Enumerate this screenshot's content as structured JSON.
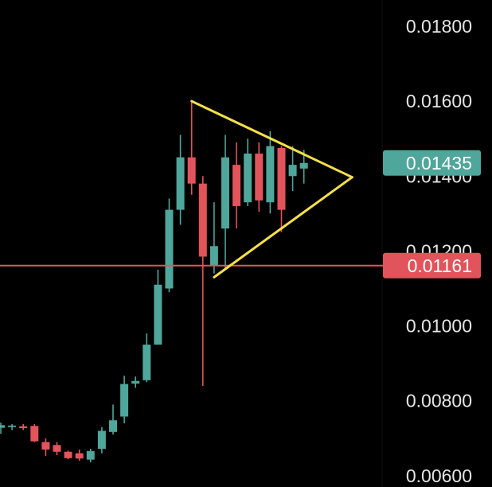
{
  "chart_data": {
    "type": "candlestick",
    "background": "#000000",
    "colors": {
      "up": "#4fa69a",
      "down": "#e2545b",
      "pattern": "#f5e04a",
      "support": "#e2545b"
    },
    "ylim": [
      0.0057,
      0.0187
    ],
    "y_ticks": [
      "0.01800",
      "0.01600",
      "0.01400",
      "0.01200",
      "0.01000",
      "0.00800",
      "0.00600"
    ],
    "current_price": {
      "label": "0.01435",
      "value": 0.01435,
      "color": "#4fa69a"
    },
    "support_level": {
      "label": "0.01161",
      "value": 0.01161,
      "color": "#e2545b"
    },
    "candles": [
      {
        "o": 0.00728,
        "h": 0.00742,
        "l": 0.00712,
        "c": 0.00735
      },
      {
        "o": 0.0073,
        "h": 0.00738,
        "l": 0.00722,
        "c": 0.00734
      },
      {
        "o": 0.00732,
        "h": 0.00738,
        "l": 0.00722,
        "c": 0.00727
      },
      {
        "o": 0.00733,
        "h": 0.00738,
        "l": 0.0069,
        "c": 0.00692
      },
      {
        "o": 0.0069,
        "h": 0.007,
        "l": 0.00653,
        "c": 0.0067
      },
      {
        "o": 0.00682,
        "h": 0.0069,
        "l": 0.00655,
        "c": 0.00664
      },
      {
        "o": 0.00664,
        "h": 0.00667,
        "l": 0.00644,
        "c": 0.00647
      },
      {
        "o": 0.0066,
        "h": 0.0067,
        "l": 0.0064,
        "c": 0.00646
      },
      {
        "o": 0.00643,
        "h": 0.00672,
        "l": 0.00636,
        "c": 0.00666
      },
      {
        "o": 0.00672,
        "h": 0.0073,
        "l": 0.0066,
        "c": 0.0072
      },
      {
        "o": 0.00717,
        "h": 0.0079,
        "l": 0.0071,
        "c": 0.00748
      },
      {
        "o": 0.00758,
        "h": 0.00867,
        "l": 0.0074,
        "c": 0.00845
      },
      {
        "o": 0.00846,
        "h": 0.00865,
        "l": 0.00835,
        "c": 0.00853
      },
      {
        "o": 0.00855,
        "h": 0.0098,
        "l": 0.0085,
        "c": 0.0095
      },
      {
        "o": 0.0095,
        "h": 0.0115,
        "l": 0.0095,
        "c": 0.0111
      },
      {
        "o": 0.011,
        "h": 0.0134,
        "l": 0.0109,
        "c": 0.0131
      },
      {
        "o": 0.0131,
        "h": 0.0151,
        "l": 0.0127,
        "c": 0.0145
      },
      {
        "o": 0.0145,
        "h": 0.016,
        "l": 0.0135,
        "c": 0.0138
      },
      {
        "o": 0.0138,
        "h": 0.014,
        "l": 0.0084,
        "c": 0.01185
      },
      {
        "o": 0.0116,
        "h": 0.0133,
        "l": 0.0114,
        "c": 0.01213
      },
      {
        "o": 0.0126,
        "h": 0.0151,
        "l": 0.0115,
        "c": 0.0145
      },
      {
        "o": 0.0143,
        "h": 0.0149,
        "l": 0.0126,
        "c": 0.0132
      },
      {
        "o": 0.0133,
        "h": 0.015,
        "l": 0.0132,
        "c": 0.0146
      },
      {
        "o": 0.0146,
        "h": 0.0149,
        "l": 0.01305,
        "c": 0.01335
      },
      {
        "o": 0.0133,
        "h": 0.0152,
        "l": 0.013,
        "c": 0.0148
      },
      {
        "o": 0.01475,
        "h": 0.0148,
        "l": 0.0125,
        "c": 0.0131
      },
      {
        "o": 0.014,
        "h": 0.0148,
        "l": 0.0136,
        "c": 0.0143
      },
      {
        "o": 0.0142,
        "h": 0.0147,
        "l": 0.0138,
        "c": 0.01435
      }
    ],
    "pattern": {
      "type": "symmetrical-triangle",
      "apex_left_top": {
        "candle": 17,
        "price": 0.016
      },
      "apex_left_bottom": {
        "candle": 19,
        "price": 0.0113
      },
      "apex_right": {
        "candle": 31.3,
        "price": 0.01397
      }
    }
  }
}
